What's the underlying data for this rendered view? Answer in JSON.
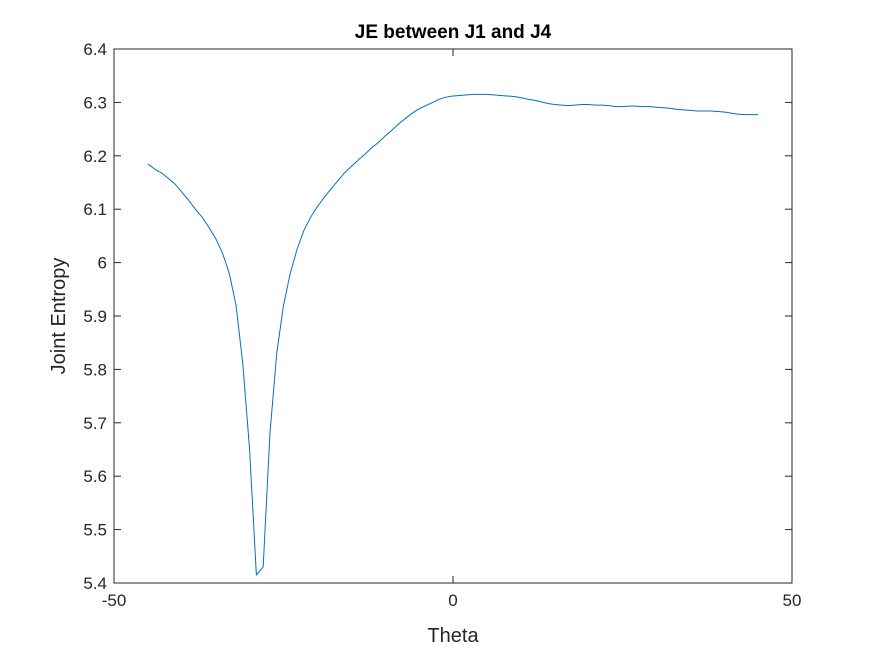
{
  "chart_data": {
    "type": "line",
    "title": "JE between J1 and J4",
    "xlabel": "Theta",
    "ylabel": "Joint Entropy",
    "xlim": [
      -50,
      50
    ],
    "ylim": [
      5.4,
      6.4
    ],
    "xticks": [
      -50,
      0,
      50
    ],
    "xtick_labels": [
      "-50",
      "0",
      "50"
    ],
    "yticks": [
      5.4,
      5.5,
      5.6,
      5.7,
      5.8,
      5.9,
      6.0,
      6.1,
      6.2,
      6.3,
      6.4
    ],
    "ytick_labels": [
      "5.4",
      "5.5",
      "5.6",
      "5.7",
      "5.8",
      "5.9",
      "6",
      "6.1",
      "6.2",
      "6.3",
      "6.4"
    ],
    "grid": false,
    "box": true,
    "series": [
      {
        "color": "#0072BD",
        "x": [
          -45,
          -44,
          -43,
          -42,
          -41,
          -40,
          -39,
          -38,
          -37,
          -36,
          -35,
          -34,
          -33,
          -32,
          -31,
          -30,
          -29,
          -28,
          -27,
          -26,
          -25,
          -24,
          -23,
          -22,
          -21,
          -20,
          -19,
          -18,
          -17,
          -16,
          -15,
          -14,
          -13,
          -12,
          -11,
          -10,
          -9,
          -8,
          -7,
          -6,
          -5,
          -4,
          -3,
          -2,
          -1,
          0,
          1,
          2,
          3,
          4,
          5,
          6,
          7,
          8,
          9,
          10,
          11,
          12,
          13,
          14,
          15,
          16,
          17,
          18,
          19,
          20,
          21,
          22,
          23,
          24,
          25,
          26,
          27,
          28,
          29,
          30,
          31,
          32,
          33,
          34,
          35,
          36,
          37,
          38,
          39,
          40,
          41,
          42,
          43,
          44,
          45
        ],
        "y": [
          6.185,
          6.175,
          6.168,
          6.158,
          6.147,
          6.132,
          6.117,
          6.1,
          6.085,
          6.066,
          6.045,
          6.018,
          5.98,
          5.92,
          5.81,
          5.65,
          5.415,
          5.43,
          5.68,
          5.83,
          5.92,
          5.98,
          6.025,
          6.06,
          6.085,
          6.105,
          6.122,
          6.138,
          6.153,
          6.168,
          6.18,
          6.192,
          6.203,
          6.215,
          6.225,
          6.237,
          6.248,
          6.26,
          6.27,
          6.28,
          6.288,
          6.294,
          6.3,
          6.306,
          6.31,
          6.312,
          6.313,
          6.314,
          6.315,
          6.315,
          6.315,
          6.314,
          6.313,
          6.312,
          6.311,
          6.309,
          6.306,
          6.304,
          6.301,
          6.298,
          6.296,
          6.295,
          6.294,
          6.295,
          6.296,
          6.296,
          6.295,
          6.295,
          6.294,
          6.292,
          6.292,
          6.293,
          6.293,
          6.292,
          6.292,
          6.291,
          6.29,
          6.289,
          6.287,
          6.286,
          6.285,
          6.284,
          6.284,
          6.284,
          6.283,
          6.282,
          6.28,
          6.278,
          6.277,
          6.277,
          6.277
        ]
      }
    ]
  }
}
